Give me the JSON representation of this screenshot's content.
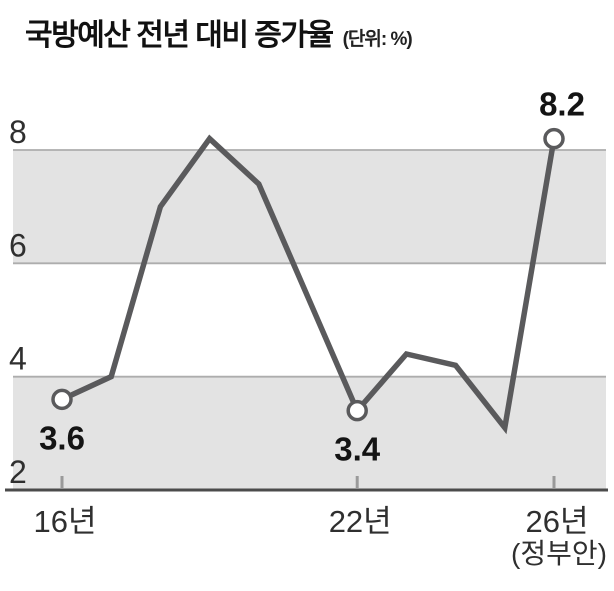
{
  "header": {
    "title": "국방예산 전년 대비 증가율",
    "unit_label": "(단위: %)"
  },
  "chart_data": {
    "type": "line",
    "title": "국방예산 전년 대비 증가율",
    "unit_label": "(단위: %)",
    "x": [
      2016,
      2017,
      2018,
      2019,
      2020,
      2021,
      2022,
      2023,
      2024,
      2025,
      2026
    ],
    "values": [
      3.6,
      4.0,
      7.0,
      8.2,
      7.4,
      5.4,
      3.4,
      4.4,
      4.2,
      3.1,
      8.2
    ],
    "labeled_points": [
      {
        "year": 2016,
        "value": 3.6,
        "label": "3.6",
        "label_pos": "below"
      },
      {
        "year": 2022,
        "value": 3.4,
        "label": "3.4",
        "label_pos": "below"
      },
      {
        "year": 2026,
        "value": 8.2,
        "label": "8.2",
        "label_pos": "above"
      }
    ],
    "y_ticks": [
      8,
      6,
      4,
      2
    ],
    "ylim": [
      2,
      8.6
    ],
    "xlim": [
      2016,
      2026
    ],
    "x_tick_labels": [
      {
        "year": 2016,
        "label": "16년"
      },
      {
        "year": 2022,
        "label": "22년"
      },
      {
        "year": 2026,
        "label": "26년",
        "sub_label": "(정부안)"
      }
    ],
    "bands": [
      [
        6,
        8
      ],
      [
        2,
        4
      ]
    ],
    "grid": "horizontal",
    "legend": "none",
    "colors": {
      "background": "#ffffff",
      "line": "#5a5a5c",
      "marker_fill": "#ffffff",
      "band": "#e3e3e3",
      "grid": "#adadad",
      "axis": "#4b4b4b",
      "tick": "#9a9a9a",
      "axis_text": "#2f2f2f",
      "point_label": "#141414",
      "title": "#111111"
    }
  }
}
